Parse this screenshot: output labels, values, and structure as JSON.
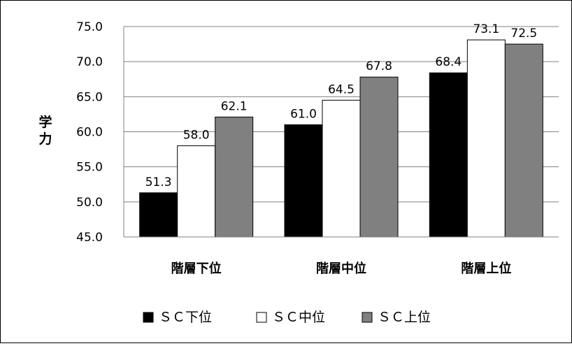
{
  "chart_data": {
    "type": "bar",
    "categories": [
      "階層下位",
      "階層中位",
      "階層上位"
    ],
    "series": [
      {
        "name": "ＳＣ下位",
        "color": "#000000",
        "values": [
          51.3,
          61.0,
          68.4
        ],
        "labels": [
          "51.3",
          "61.0",
          "68.4"
        ]
      },
      {
        "name": "ＳＣ中位",
        "color": "#ffffff",
        "values": [
          58.0,
          64.5,
          73.1
        ],
        "labels": [
          "58.0",
          "64.5",
          "73.1"
        ]
      },
      {
        "name": "ＳＣ上位",
        "color": "#808080",
        "values": [
          62.1,
          67.8,
          72.5
        ],
        "labels": [
          "62.1",
          "67.8",
          "72.5"
        ]
      }
    ],
    "ylabel": "学力",
    "ylim": [
      45.0,
      75.0
    ],
    "yticks": [
      "45.0",
      "50.0",
      "55.0",
      "60.0",
      "65.0",
      "70.0",
      "75.0"
    ],
    "ytick_values": [
      45,
      50,
      55,
      60,
      65,
      70,
      75
    ],
    "grid": true,
    "legend": {
      "position": "bottom",
      "markers": [
        "■",
        "□",
        "■"
      ]
    }
  }
}
